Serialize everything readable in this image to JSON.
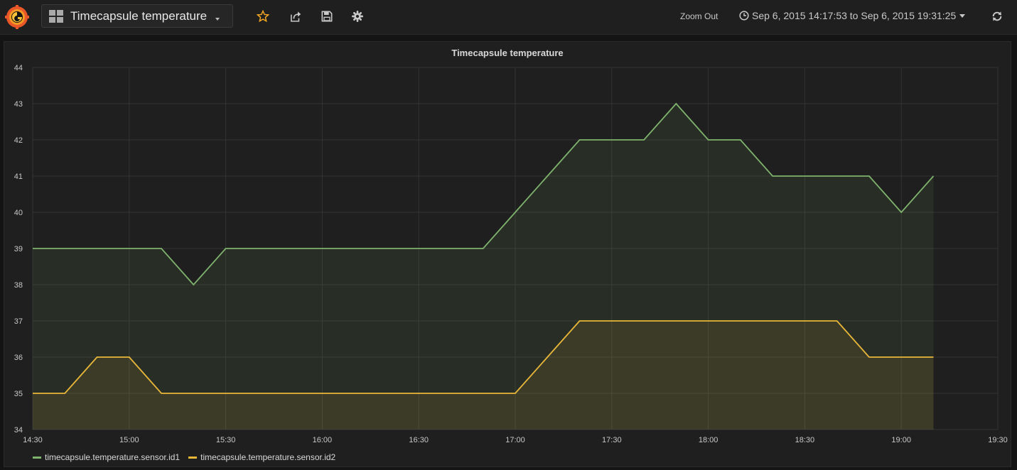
{
  "header": {
    "dashboard_title": "Timecapsule temperature",
    "zoom_out_label": "Zoom Out",
    "time_range": "Sep 6, 2015 14:17:53 to Sep 6, 2015 19:31:25",
    "icons": [
      "grafana-logo-icon",
      "dashboard-grid-icon",
      "star-icon",
      "share-icon",
      "save-icon",
      "settings-icon",
      "clock-icon",
      "refresh-icon"
    ],
    "star_color": "#f5a623"
  },
  "panel": {
    "title": "Timecapsule temperature"
  },
  "chart_data": {
    "type": "area",
    "title": "Timecapsule temperature",
    "xlabel": "",
    "ylabel": "",
    "x_ticks": [
      "14:30",
      "15:00",
      "15:30",
      "16:00",
      "16:30",
      "17:00",
      "17:30",
      "18:00",
      "18:30",
      "19:00",
      "19:30"
    ],
    "y_ticks": [
      34,
      35,
      36,
      37,
      38,
      39,
      40,
      41,
      42,
      43,
      44
    ],
    "ylim": [
      34,
      44
    ],
    "xlim": [
      "14:30",
      "19:30"
    ],
    "grid": true,
    "legend_position": "bottom-left",
    "x": [
      "14:30",
      "14:40",
      "14:50",
      "15:00",
      "15:10",
      "15:20",
      "15:30",
      "15:40",
      "15:50",
      "16:00",
      "16:10",
      "16:20",
      "16:30",
      "16:40",
      "16:50",
      "17:00",
      "17:10",
      "17:20",
      "17:30",
      "17:40",
      "17:50",
      "18:00",
      "18:10",
      "18:20",
      "18:30",
      "18:40",
      "18:50",
      "19:00",
      "19:10"
    ],
    "series": [
      {
        "name": "timecapsule.temperature.sensor.id1",
        "color": "#7eb26d",
        "values": [
          39,
          39,
          39,
          39,
          39,
          38,
          39,
          39,
          39,
          39,
          39,
          39,
          39,
          39,
          39,
          40,
          41,
          42,
          42,
          42,
          43,
          42,
          42,
          41,
          41,
          41,
          41,
          40,
          41
        ]
      },
      {
        "name": "timecapsule.temperature.sensor.id2",
        "color": "#eab839",
        "values": [
          35,
          35,
          36,
          36,
          35,
          35,
          35,
          35,
          35,
          35,
          35,
          35,
          35,
          35,
          35,
          35,
          36,
          37,
          37,
          37,
          37,
          37,
          37,
          37,
          37,
          37,
          36,
          36,
          36
        ]
      }
    ]
  }
}
